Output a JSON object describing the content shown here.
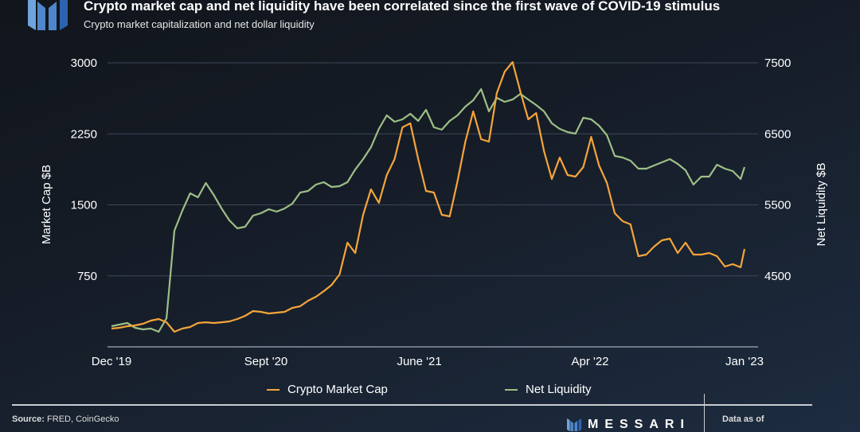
{
  "header": {
    "title": "Crypto market cap and net liquidity have been correlated since the first wave of COVID-19 stimulus",
    "subtitle": "Crypto market capitalization and net dollar liquidity",
    "logo": "messari-m-logo"
  },
  "footer": {
    "source_label": "Source:",
    "source_text": "FRED, CoinGecko",
    "brand": "MESSARI",
    "data_as_of": "Data as of"
  },
  "colors": {
    "market_cap": "#f5a53a",
    "net_liquidity": "#9dbf86",
    "grid": "#3c4656"
  },
  "chart_data": {
    "type": "line",
    "title": "Crypto market cap and net liquidity have been correlated since the first wave of COVID-19 stimulus",
    "subtitle": "Crypto market capitalization and net dollar liquidity",
    "xlabel": "",
    "ylabel": "Market Cap $B",
    "ylabel_right": "Net Liquidity $B",
    "ylim": [
      0,
      3000
    ],
    "ylim_right": [
      3500,
      7500
    ],
    "yticks": [
      "750",
      "1500",
      "2250",
      "3000"
    ],
    "yticks_right": [
      "4500",
      "5500",
      "6500",
      "7500"
    ],
    "xticks": [
      {
        "label": "Dec '19",
        "date": "2019-12-01"
      },
      {
        "label": "Sept '20",
        "date": "2020-09-01"
      },
      {
        "label": "June '21",
        "date": "2021-06-01"
      },
      {
        "label": "Apr '22",
        "date": "2022-04-01"
      },
      {
        "label": "Jan '23",
        "date": "2023-01-01"
      }
    ],
    "grid": true,
    "legend_position": "bottom",
    "x": [
      "2019-12-01",
      "2019-12-15",
      "2019-12-29",
      "2020-01-12",
      "2020-01-26",
      "2020-02-09",
      "2020-02-23",
      "2020-03-08",
      "2020-03-22",
      "2020-04-05",
      "2020-04-19",
      "2020-05-03",
      "2020-05-17",
      "2020-05-31",
      "2020-06-14",
      "2020-06-28",
      "2020-07-12",
      "2020-07-26",
      "2020-08-09",
      "2020-08-23",
      "2020-09-06",
      "2020-09-20",
      "2020-10-04",
      "2020-10-18",
      "2020-11-01",
      "2020-11-15",
      "2020-11-29",
      "2020-12-13",
      "2020-12-27",
      "2021-01-10",
      "2021-01-24",
      "2021-02-07",
      "2021-02-21",
      "2021-03-07",
      "2021-03-21",
      "2021-04-04",
      "2021-04-18",
      "2021-05-02",
      "2021-05-16",
      "2021-05-30",
      "2021-06-13",
      "2021-06-27",
      "2021-07-11",
      "2021-07-25",
      "2021-08-08",
      "2021-08-22",
      "2021-09-05",
      "2021-09-19",
      "2021-10-03",
      "2021-10-17",
      "2021-10-31",
      "2021-11-14",
      "2021-11-28",
      "2021-12-12",
      "2021-12-26",
      "2022-01-09",
      "2022-01-23",
      "2022-02-06",
      "2022-02-20",
      "2022-03-06",
      "2022-03-20",
      "2022-04-03",
      "2022-04-17",
      "2022-05-01",
      "2022-05-15",
      "2022-05-29",
      "2022-06-12",
      "2022-06-26",
      "2022-07-10",
      "2022-07-24",
      "2022-08-07",
      "2022-08-21",
      "2022-09-04",
      "2022-09-18",
      "2022-10-02",
      "2022-10-16",
      "2022-10-30",
      "2022-11-13",
      "2022-11-27",
      "2022-12-11",
      "2022-12-25",
      "2023-01-01"
    ],
    "series": [
      {
        "name": "Crypto Market Cap",
        "axis": "left",
        "values": [
          193,
          202,
          218,
          227,
          244,
          277,
          294,
          260,
          160,
          193,
          210,
          252,
          260,
          252,
          260,
          269,
          294,
          328,
          378,
          370,
          353,
          361,
          370,
          412,
          429,
          487,
          529,
          588,
          655,
          765,
          1101,
          992,
          1395,
          1664,
          1521,
          1815,
          1983,
          2319,
          2361,
          1983,
          1647,
          1630,
          1395,
          1378,
          1748,
          2168,
          2487,
          2193,
          2168,
          2681,
          2907,
          3008,
          2697,
          2403,
          2470,
          2067,
          1773,
          2000,
          1815,
          1798,
          1899,
          2218,
          1916,
          1731,
          1412,
          1328,
          1294,
          958,
          975,
          1059,
          1126,
          1143,
          992,
          1101,
          975,
          975,
          992,
          958,
          849,
          874,
          840,
          1034
        ]
      },
      {
        "name": "Net Liquidity",
        "axis": "right",
        "values": [
          3791,
          3814,
          3836,
          3769,
          3746,
          3758,
          3713,
          3903,
          5136,
          5416,
          5662,
          5606,
          5808,
          5640,
          5449,
          5281,
          5169,
          5192,
          5349,
          5382,
          5438,
          5405,
          5449,
          5517,
          5674,
          5696,
          5786,
          5819,
          5752,
          5763,
          5819,
          5998,
          6144,
          6312,
          6570,
          6760,
          6671,
          6704,
          6783,
          6682,
          6839,
          6592,
          6559,
          6682,
          6760,
          6884,
          6973,
          7130,
          6816,
          7007,
          6951,
          6984,
          7063,
          6984,
          6906,
          6816,
          6648,
          6570,
          6525,
          6503,
          6727,
          6704,
          6615,
          6480,
          6189,
          6167,
          6122,
          6010,
          6010,
          6055,
          6099,
          6144,
          6077,
          5987,
          5786,
          5898,
          5898,
          6066,
          6010,
          5976,
          5864,
          6032
        ]
      }
    ]
  }
}
